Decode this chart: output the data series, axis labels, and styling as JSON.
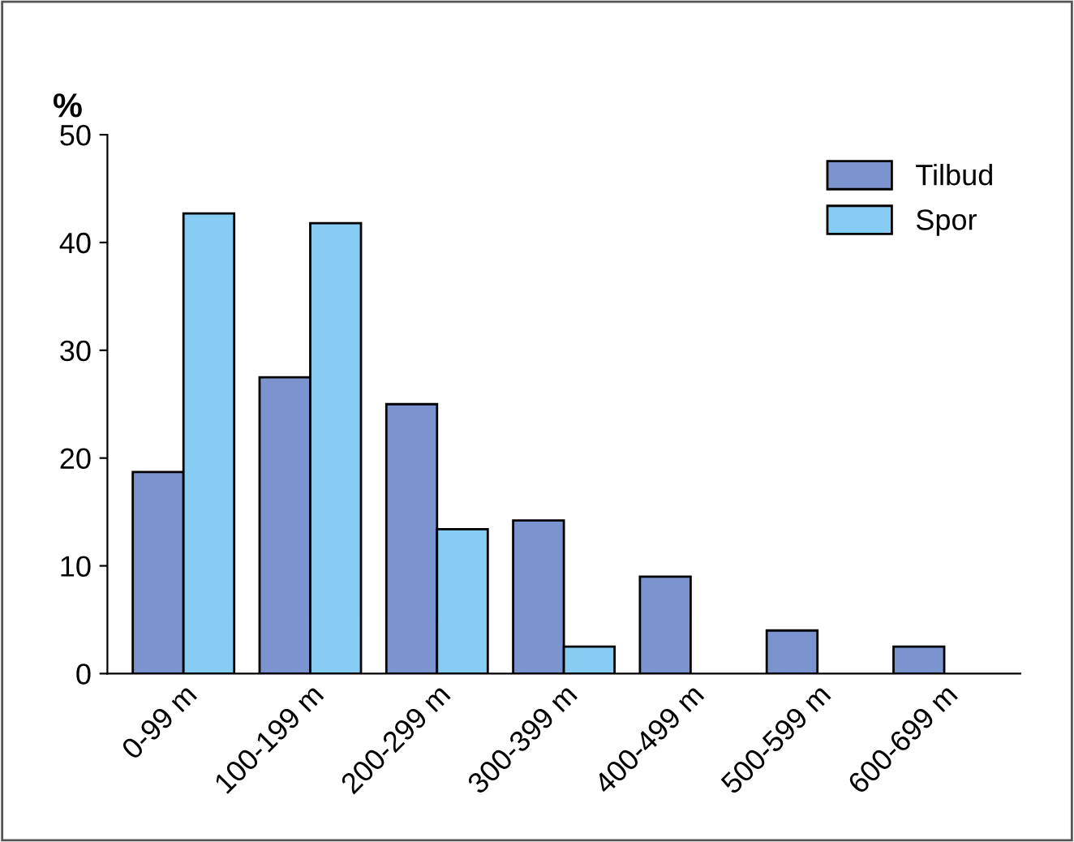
{
  "chart_data": {
    "type": "bar",
    "ylabel": "%",
    "categories": [
      "0-99 m",
      "100-199 m",
      "200-299 m",
      "300-399 m",
      "400-499 m",
      "500-599 m",
      "600-699 m"
    ],
    "series": [
      {
        "name": "Tilbud",
        "color": "#7b93cf",
        "values": [
          18.7,
          27.5,
          25,
          14.2,
          9,
          4,
          2.5
        ]
      },
      {
        "name": "Spor",
        "color": "#87cdf3",
        "values": [
          42.7,
          41.8,
          13.4,
          2.5,
          null,
          null,
          null
        ]
      }
    ],
    "ylim": [
      0,
      50
    ],
    "yticks": [
      0,
      10,
      20,
      30,
      40,
      50
    ],
    "grid": false,
    "legend": "top right"
  }
}
